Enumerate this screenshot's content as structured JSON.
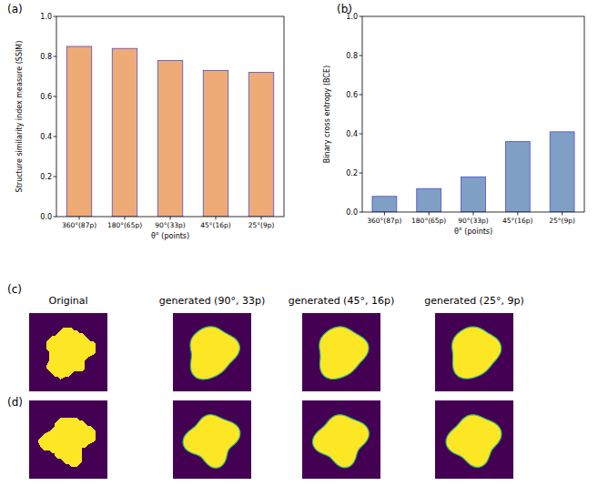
{
  "chart_data": [
    {
      "type": "bar",
      "y_label": "Structure similarity index measure (SSIM)",
      "x_label": "θ° (points)",
      "categories": [
        "360°(87p)",
        "180°(65p)",
        "90°(33p)",
        "45°(16p)",
        "25°(9p)"
      ],
      "values": [
        0.85,
        0.84,
        0.78,
        0.73,
        0.72
      ],
      "color": "#efab76",
      "ylim": [
        0,
        1
      ],
      "yticks": [
        {
          "value": 0,
          "label": "0.0"
        },
        0.2,
        0.4,
        0.6,
        0.8,
        {
          "value": 1,
          "label": "1.0"
        }
      ],
      "grid": false
    },
    {
      "type": "bar",
      "y_label": "Binary cross entropy (BCE)",
      "x_label": "θ° (points)",
      "categories": [
        "360°(87p)",
        "180°(65p)",
        "90°(33p)",
        "45°(16p)",
        "25°(9p)"
      ],
      "values": [
        0.08,
        0.12,
        0.18,
        0.36,
        0.41
      ],
      "color": "#809fc4",
      "ylim": [
        0,
        1
      ],
      "yticks": [
        {
          "value": 0,
          "label": "0.0"
        },
        0.2,
        0.4,
        0.6,
        0.8,
        {
          "value": 1,
          "label": "1.0"
        }
      ],
      "grid": false
    }
  ],
  "panel_labels": [
    "(a)",
    "(b)",
    "(c)",
    "(d)"
  ],
  "image_titles": [
    "Original",
    "generated (90°, 33p)",
    "generated (45°, 16p)",
    "generated (25°, 9p)"
  ]
}
